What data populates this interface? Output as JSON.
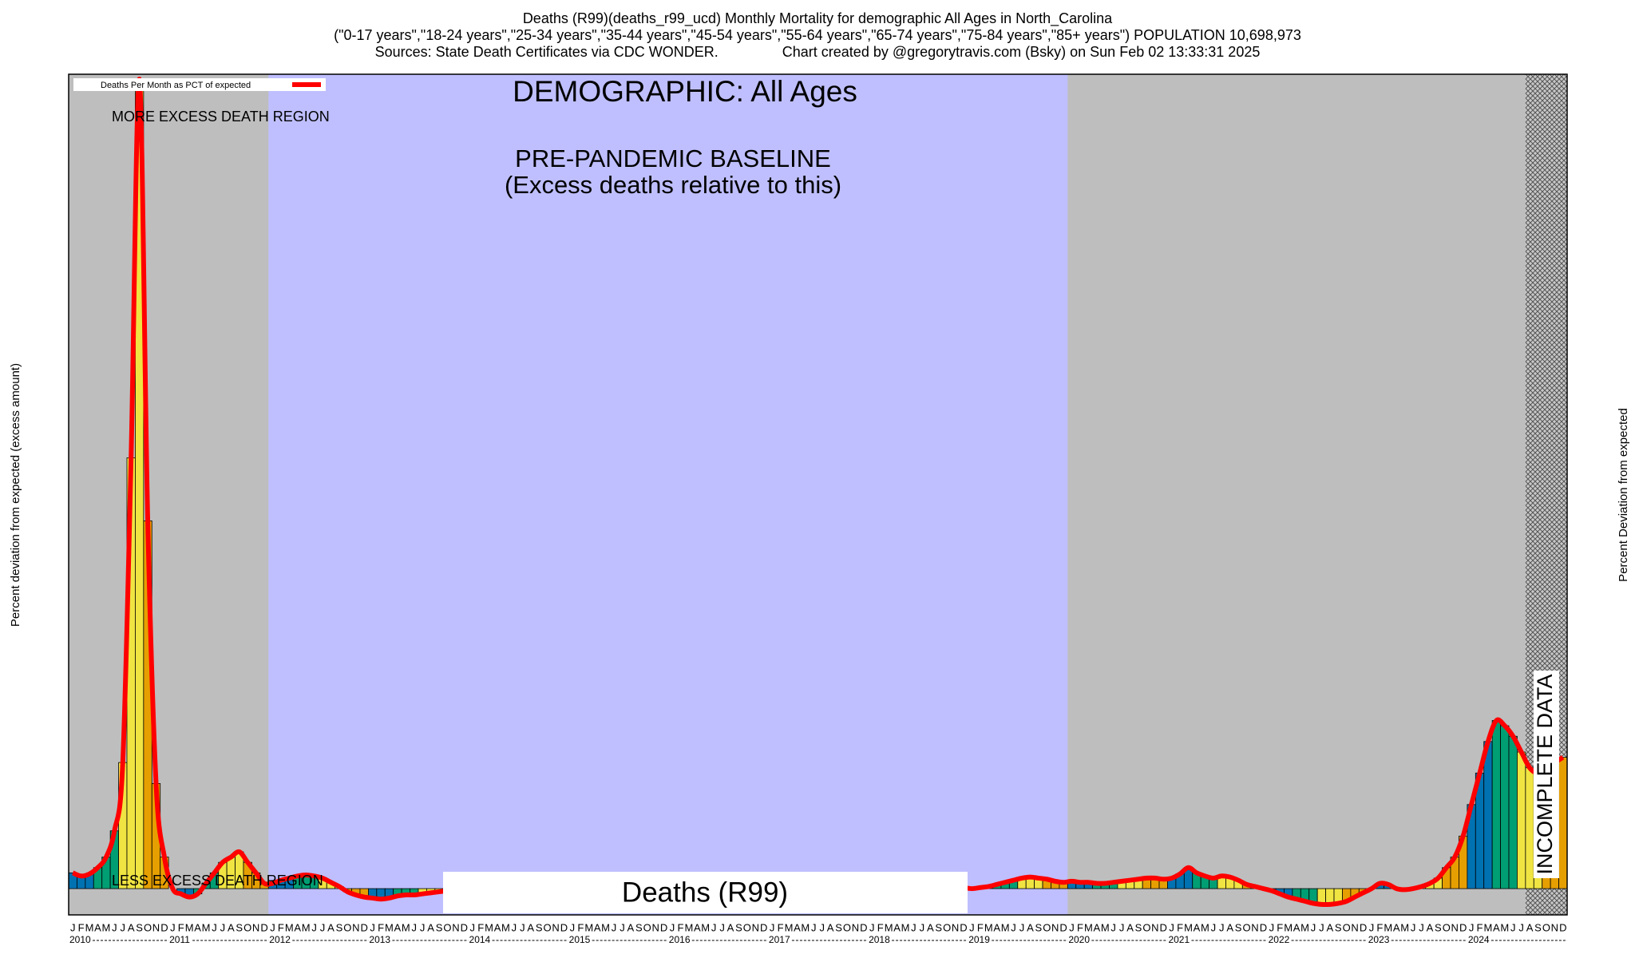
{
  "chart_data": {
    "type": "bar-line",
    "title_lines": [
      "Deaths (R99)(deaths_r99_ucd) Monthly Mortality for demographic All Ages in North_Carolina",
      "(\"0-17 years\",\"18-24 years\",\"25-34 years\",\"35-44 years\",\"45-54 years\",\"55-64 years\",\"65-74 years\",\"75-84 years\",\"85+ years\") POPULATION 10,698,973",
      "Sources: State Death Certificates via CDC WONDER.                Chart created by @gregorytravis.com (Bsky) on Sun Feb 02 13:33:31 2025"
    ],
    "demographic_label": "DEMOGRAPHIC: All Ages",
    "baseline_label": [
      "PRE-PANDEMIC BASELINE",
      "(Excess deaths relative to this)"
    ],
    "more_region_label": "MORE EXCESS DEATH REGION",
    "less_region_label": "LESS EXCESS DEATH REGION",
    "cause_label": "Deaths (R99)",
    "incomplete_label": "INCOMPLETE DATA",
    "legend_label": "Deaths Per Month as PCT of expected",
    "y_label": "Percent deviation from expected (excess amount)",
    "y2_label": "Percent Deviation from expected",
    "month_letters": [
      "J",
      "F",
      "M",
      "A",
      "M",
      "J",
      "J",
      "A",
      "S",
      "O",
      "N",
      "D"
    ],
    "years": [
      "2010",
      "2011",
      "2012",
      "2013",
      "2014",
      "2015",
      "2016",
      "2017",
      "2018",
      "2019",
      "2020",
      "2021",
      "2022",
      "2023",
      "2024"
    ],
    "values": [
      15,
      12,
      14,
      20,
      30,
      55,
      120,
      410,
      770,
      350,
      100,
      30,
      0,
      -5,
      -8,
      -5,
      5,
      15,
      25,
      30,
      35,
      25,
      15,
      5,
      5,
      8,
      10,
      12,
      13,
      12,
      10,
      6,
      2,
      -3,
      -6,
      -8,
      -9,
      -10,
      -9,
      -7,
      -6,
      -6,
      -5,
      -4,
      -3,
      -2,
      -1,
      0,
      0,
      1,
      2,
      1,
      0,
      1,
      2,
      1,
      0,
      1,
      2,
      2,
      2,
      2,
      1,
      1,
      2,
      1,
      0,
      1,
      2,
      2,
      1,
      1,
      1,
      2,
      1,
      1,
      0,
      1,
      1,
      1,
      2,
      1,
      2,
      2,
      2,
      1,
      1,
      0,
      1,
      1,
      2,
      2,
      1,
      1,
      2,
      2,
      2,
      2,
      1,
      1,
      0,
      0,
      1,
      1,
      0,
      1,
      2,
      1,
      0,
      1,
      2,
      4,
      6,
      8,
      10,
      11,
      10,
      9,
      7,
      6,
      7,
      6,
      6,
      5,
      5,
      6,
      7,
      8,
      9,
      10,
      10,
      9,
      10,
      14,
      20,
      15,
      12,
      10,
      12,
      11,
      8,
      4,
      2,
      0,
      -2,
      -5,
      -8,
      -10,
      -12,
      -14,
      -15,
      -15,
      -14,
      -12,
      -8,
      -4,
      0,
      5,
      4,
      0,
      -1,
      0,
      2,
      5,
      10,
      20,
      30,
      50,
      80,
      110,
      140,
      160,
      155,
      145,
      130,
      115,
      110,
      115,
      120,
      125
    ],
    "ylim": [
      -25,
      775
    ],
    "line_color": "#ff0000",
    "month_colors": [
      "#0072b2",
      "#0072b2",
      "#0072b2",
      "#009e73",
      "#009e73",
      "#009e73",
      "#f0e442",
      "#f0e442",
      "#f0e442",
      "#e69f00",
      "#e69f00",
      "#e69f00"
    ],
    "region_color": "#bebebe",
    "baseline_color": "#bfbfff",
    "baseline_range": [
      24,
      120
    ],
    "incomplete_from": 175
  }
}
